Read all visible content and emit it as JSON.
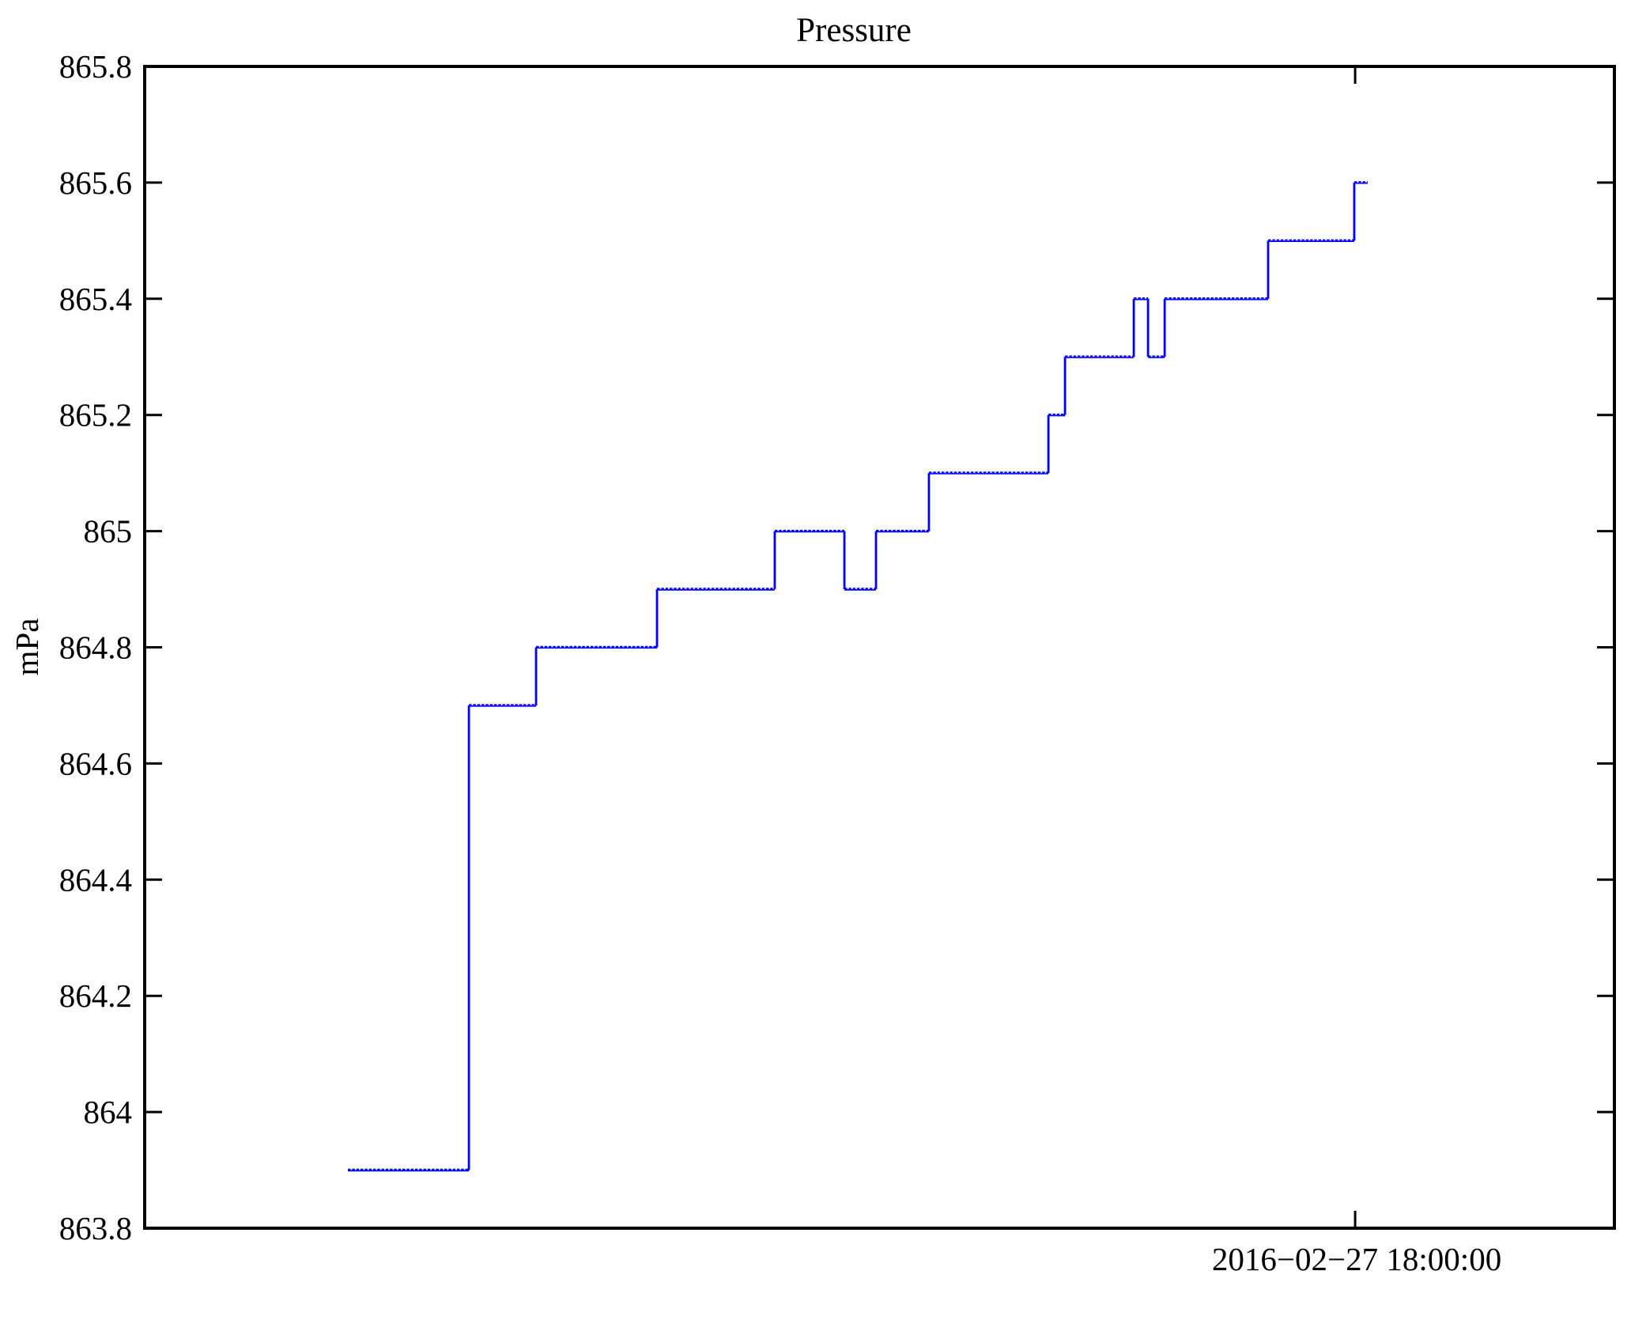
{
  "chart_data": {
    "type": "line",
    "line_style": "step",
    "title": "Pressure",
    "ylabel": "mPa",
    "xlabel": "",
    "ylim": [
      863.8,
      865.8
    ],
    "ytick_interval": 0.2,
    "grid": false,
    "legend": "none",
    "series_color": "#0000ff",
    "axis_color": "#000000",
    "yticks": [
      "863.8",
      "864",
      "864.2",
      "864.4",
      "864.6",
      "864.8",
      "865",
      "865.2",
      "865.4",
      "865.6",
      "865.8"
    ],
    "xtick": {
      "label": "2016−02−27 18:00:00",
      "position_fraction": 0.8236
    },
    "series": [
      {
        "name": "Pressure",
        "unit": "mPa",
        "segments": [
          {
            "x1": 0.1383,
            "x2": 0.2206,
            "y": 863.9
          },
          {
            "x1": 0.2206,
            "x2": 0.2663,
            "y": 864.7
          },
          {
            "x1": 0.2663,
            "x2": 0.3486,
            "y": 864.8
          },
          {
            "x1": 0.3486,
            "x2": 0.4287,
            "y": 864.9
          },
          {
            "x1": 0.4287,
            "x2": 0.4761,
            "y": 865.0
          },
          {
            "x1": 0.4761,
            "x2": 0.4976,
            "y": 864.9
          },
          {
            "x1": 0.4976,
            "x2": 0.5336,
            "y": 865.0
          },
          {
            "x1": 0.5336,
            "x2": 0.6149,
            "y": 865.1
          },
          {
            "x1": 0.6149,
            "x2": 0.6262,
            "y": 865.2
          },
          {
            "x1": 0.6262,
            "x2": 0.673,
            "y": 865.3
          },
          {
            "x1": 0.673,
            "x2": 0.6827,
            "y": 865.4
          },
          {
            "x1": 0.6827,
            "x2": 0.694,
            "y": 865.3
          },
          {
            "x1": 0.694,
            "x2": 0.7644,
            "y": 865.4
          },
          {
            "x1": 0.7644,
            "x2": 0.823,
            "y": 865.5
          },
          {
            "x1": 0.823,
            "x2": 0.8322,
            "y": 865.6
          }
        ]
      }
    ]
  }
}
